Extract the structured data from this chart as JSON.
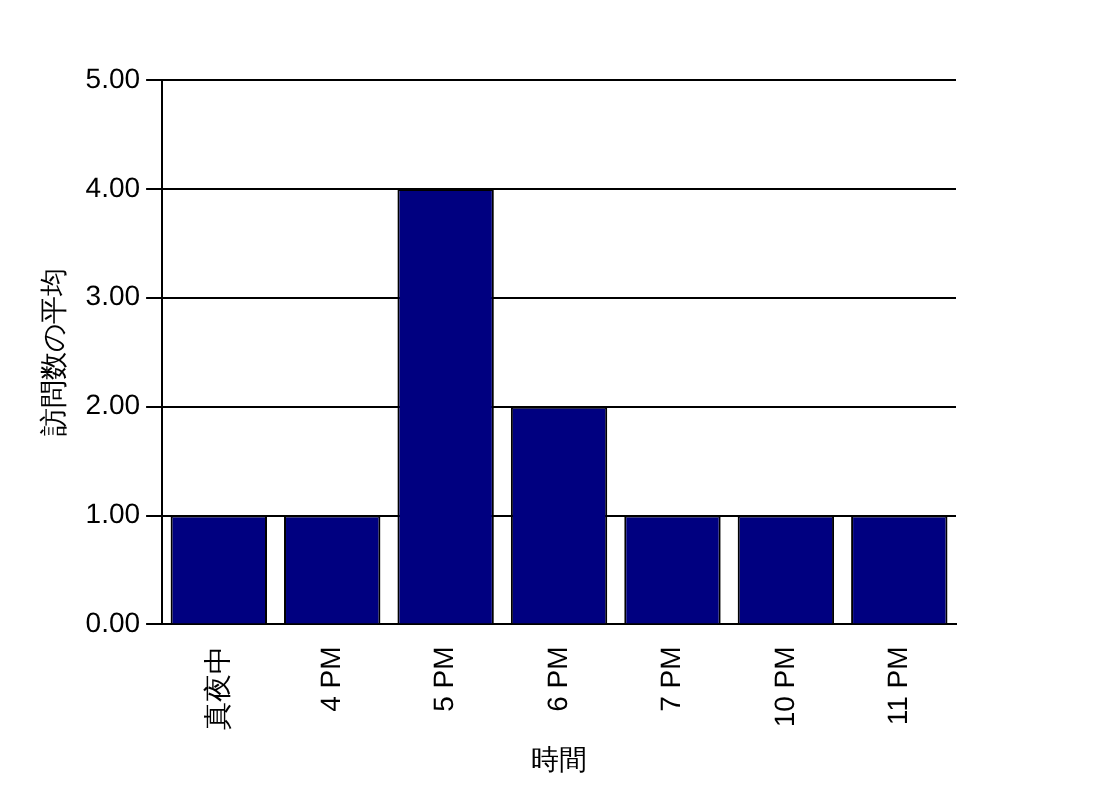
{
  "chart_data": {
    "type": "bar",
    "xlabel": "時間",
    "ylabel": "訪問数の平均",
    "categories": [
      "真夜中",
      "4 PM",
      "5 PM",
      "6 PM",
      "7 PM",
      "10 PM",
      "11 PM"
    ],
    "values": [
      1,
      1,
      4,
      2,
      1,
      1,
      1
    ],
    "color": "#000080",
    "ylim": [
      0,
      5
    ],
    "yticks": [
      {
        "value": 0,
        "label": "0.00"
      },
      {
        "value": 1,
        "label": "1.00"
      },
      {
        "value": 2,
        "label": "2.00"
      },
      {
        "value": 3,
        "label": "3.00"
      },
      {
        "value": 4,
        "label": "4.00"
      },
      {
        "value": 5,
        "label": "5.00"
      }
    ],
    "grid": "y",
    "legend": false
  }
}
